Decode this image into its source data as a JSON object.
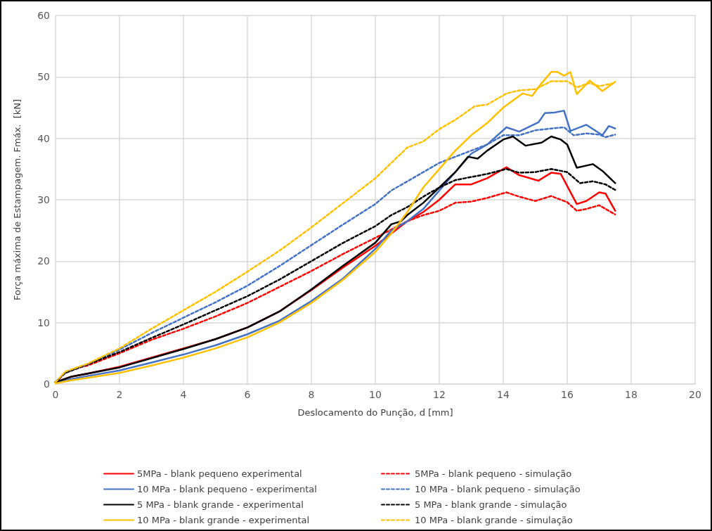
{
  "chart_data": {
    "type": "line",
    "xlabel": "Deslocamento do Punção, d [mm]",
    "ylabel": "Força máxima de Estampagem. Fmáx.  [kN]",
    "xlim": [
      0,
      20
    ],
    "xticks": [
      0,
      2,
      4,
      6,
      8,
      10,
      12,
      14,
      16,
      18,
      20
    ],
    "ylim": [
      0,
      60
    ],
    "yticks": [
      0,
      10,
      20,
      30,
      40,
      50,
      60
    ],
    "grid": true,
    "legend": "bottom",
    "series": [
      {
        "name": "5MPa - blank pequeno experimental",
        "color": "#ff0000",
        "line_style": "solid",
        "x": [
          0,
          0.5,
          1,
          2,
          3,
          4,
          5,
          6,
          7,
          8,
          9,
          10,
          10.5,
          11,
          11.5,
          12,
          12.5,
          13,
          13.5,
          14.1,
          14.5,
          15.1,
          15.5,
          15.8,
          16.3,
          16.6,
          17,
          17.2,
          17.5
        ],
        "values": [
          0.3,
          1.2,
          1.7,
          2.8,
          4.3,
          5.8,
          7.3,
          9.2,
          11.8,
          15.3,
          19,
          22.5,
          24.5,
          26.5,
          28,
          30,
          32.5,
          32.5,
          33.5,
          35.3,
          34,
          33.1,
          34.4,
          34.2,
          29.3,
          29.8,
          31.2,
          31,
          28.2
        ]
      },
      {
        "name": "5MPa - blank pequeno - simulação",
        "color": "#ff0000",
        "line_style": "dashed",
        "x": [
          0,
          0.3,
          0.6,
          1,
          2,
          3,
          4,
          5,
          6,
          7,
          8,
          9,
          10,
          11,
          11.5,
          12,
          12.5,
          13,
          13.5,
          14.1,
          14.5,
          15,
          15.5,
          16,
          16.3,
          16.6,
          17,
          17.5
        ],
        "values": [
          0.3,
          1.8,
          2.5,
          3,
          5,
          7.2,
          9,
          11,
          13.2,
          15.8,
          18.4,
          21.2,
          23.8,
          26.5,
          27.5,
          28.2,
          29.5,
          29.7,
          30.3,
          31.2,
          30.5,
          29.8,
          30.6,
          29.6,
          28.2,
          28.5,
          29.1,
          27.6
        ]
      },
      {
        "name": "10 MPa - blank pequeno - experimental",
        "color": "#4472c4",
        "line_style": "solid",
        "x": [
          0,
          0.5,
          1,
          2,
          3,
          4,
          5,
          6,
          7,
          8,
          9,
          10,
          10.5,
          11,
          11.5,
          12,
          12.5,
          13,
          13.5,
          14.1,
          14.5,
          15.1,
          15.3,
          15.6,
          15.9,
          16.1,
          16.6,
          17.1,
          17.3,
          17.5
        ],
        "values": [
          0.2,
          0.8,
          1.3,
          2.2,
          3.5,
          4.8,
          6.3,
          8.1,
          10.3,
          13.5,
          17.2,
          22,
          25,
          26.5,
          28.5,
          31.5,
          34.5,
          37.5,
          39,
          41.8,
          41.1,
          42.6,
          44.1,
          44.2,
          44.5,
          41.2,
          42.2,
          40.5,
          42,
          41.6
        ]
      },
      {
        "name": "10 MPa - blank pequeno - simulação",
        "color": "#4472c4",
        "line_style": "dashed",
        "x": [
          0,
          0.3,
          1,
          2,
          3,
          4,
          5,
          6,
          7,
          8,
          9,
          10,
          10.5,
          11,
          11.5,
          12,
          12.5,
          13,
          13.5,
          14,
          14.5,
          15,
          15.5,
          15.9,
          16.2,
          16.6,
          17,
          17.2,
          17.5
        ],
        "values": [
          0.3,
          1.8,
          3.2,
          5.6,
          8.3,
          10.8,
          13.3,
          16,
          19.2,
          22.6,
          26,
          29.3,
          31.5,
          33,
          34.5,
          36,
          37,
          38,
          39,
          40.5,
          40.5,
          41.3,
          41.6,
          41.8,
          40.5,
          40.8,
          40.6,
          40.2,
          40.6
        ]
      },
      {
        "name": "5 MPa - blank grande - experimental",
        "color": "#000000",
        "line_style": "solid",
        "x": [
          0,
          0.5,
          1,
          2,
          3,
          4,
          5,
          6,
          7,
          8,
          9,
          10,
          10.5,
          10.8,
          11,
          11.5,
          12,
          12.5,
          12.9,
          13.2,
          13.5,
          14,
          14.3,
          14.7,
          15.2,
          15.5,
          15.8,
          16,
          16.3,
          16.8,
          17.1,
          17.5
        ],
        "values": [
          0.3,
          1.2,
          1.7,
          2.7,
          4.2,
          5.7,
          7.3,
          9.2,
          11.8,
          15.4,
          19.3,
          23,
          26,
          26.5,
          27.5,
          29.5,
          32,
          34.5,
          37,
          36.7,
          38,
          39.8,
          40.3,
          38.8,
          39.3,
          40.3,
          39.8,
          39,
          35.2,
          35.8,
          34.7,
          32.7
        ]
      },
      {
        "name": "5 MPa - blank grande - simulação",
        "color": "#000000",
        "line_style": "dashed",
        "x": [
          0,
          0.3,
          1,
          2,
          3,
          4,
          5,
          6,
          7,
          8,
          9,
          10,
          10.5,
          11,
          11.5,
          12,
          12.5,
          12.9,
          13.5,
          14.1,
          14.5,
          15,
          15.5,
          16,
          16.4,
          16.8,
          17.2,
          17.5
        ],
        "values": [
          0.3,
          1.8,
          3.2,
          5.2,
          7.5,
          9.7,
          12,
          14.3,
          17,
          20,
          23,
          25.7,
          27.5,
          28.8,
          30.5,
          32,
          33.2,
          33.6,
          34.2,
          35,
          34.4,
          34.5,
          35,
          34.5,
          32.7,
          33,
          32.5,
          31.6
        ]
      },
      {
        "name": "10 MPa - blank grande - experimental",
        "color": "#ffc000",
        "line_style": "solid",
        "x": [
          0,
          0.5,
          1,
          2,
          3,
          4,
          5,
          6,
          7,
          8,
          9,
          10,
          10.5,
          11,
          11.5,
          12,
          12.5,
          13,
          13.5,
          14,
          14.6,
          14.9,
          15.2,
          15.5,
          15.7,
          15.9,
          16.1,
          16.3,
          16.7,
          17.1,
          17.5
        ],
        "values": [
          0.1,
          0.6,
          1,
          1.8,
          3,
          4.3,
          5.8,
          7.6,
          10,
          13.2,
          17,
          21.5,
          24.5,
          28,
          32,
          35,
          38,
          40.5,
          42.5,
          45,
          47.3,
          46.9,
          49,
          50.8,
          50.8,
          50.2,
          50.8,
          47.2,
          49.4,
          47.7,
          49.2
        ]
      },
      {
        "name": "10 MPa - blank grande - simulação",
        "color": "#ffc000",
        "line_style": "dashed",
        "x": [
          0,
          0.3,
          1,
          2,
          3,
          4,
          5,
          6,
          7,
          8,
          9,
          10,
          10.5,
          11,
          11.5,
          12,
          12.5,
          13.1,
          13.5,
          14.1,
          14.5,
          15,
          15.5,
          16,
          16.3,
          16.7,
          17,
          17.5
        ],
        "values": [
          0.3,
          2,
          3.3,
          5.8,
          9,
          12,
          15,
          18.3,
          21.7,
          25.5,
          29.5,
          33.5,
          36,
          38.5,
          39.5,
          41.5,
          43,
          45.2,
          45.5,
          47.3,
          47.8,
          48,
          49.3,
          49.3,
          48.3,
          49,
          48.5,
          49
        ]
      }
    ]
  }
}
